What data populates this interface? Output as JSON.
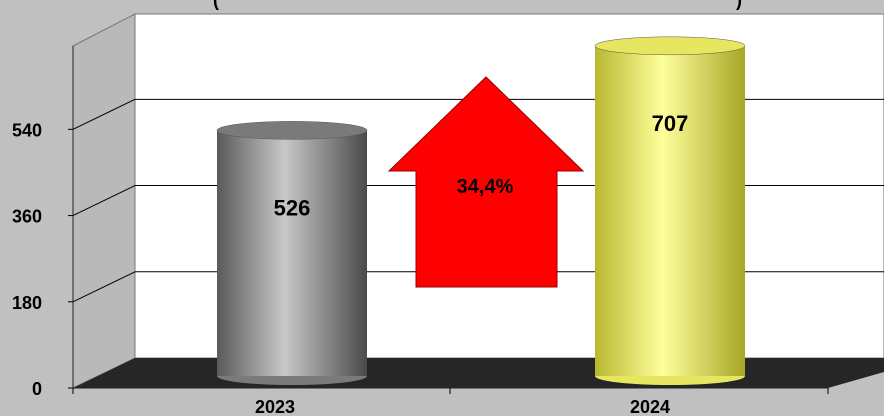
{
  "chart_data": {
    "type": "bar",
    "title_fragment_left": "(",
    "title_fragment_right": ")",
    "categories": [
      "2023",
      "2024"
    ],
    "values": [
      526,
      707
    ],
    "value_labels": [
      "526",
      "707"
    ],
    "y_ticks": [
      "0",
      "180",
      "360",
      "540"
    ],
    "ylim": [
      0,
      720
    ],
    "grid": true,
    "annotation": {
      "label": "34,4%",
      "shape": "up-arrow",
      "color": "#ff0000"
    },
    "colors": {
      "page_background": "#c0c0c0",
      "plot_background": "#ffffff",
      "floor": "#262626",
      "bar_2023": "#8c8c8c",
      "bar_2024": "#f2f27a"
    }
  }
}
